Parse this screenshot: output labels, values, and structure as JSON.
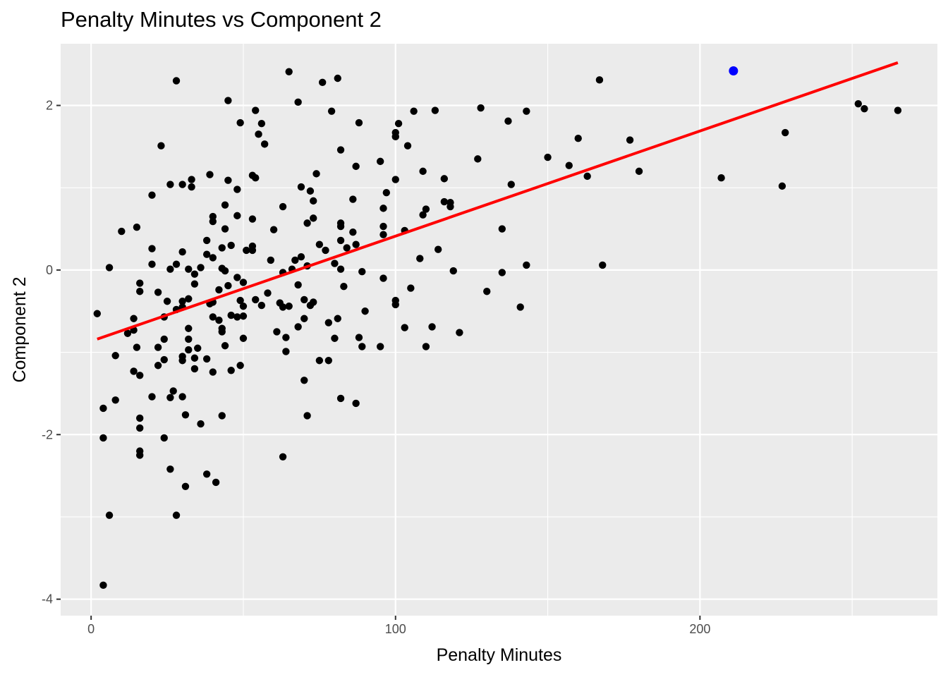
{
  "chart_data": {
    "type": "scatter",
    "title": "Penalty Minutes vs Component 2",
    "xlabel": "Penalty Minutes",
    "ylabel": "Component 2",
    "xlim": [
      -10,
      278
    ],
    "ylim": [
      -4.2,
      2.75
    ],
    "xticks": [
      0,
      100,
      200
    ],
    "yticks": [
      -4,
      -2,
      0,
      2
    ],
    "grid": true,
    "panel_color": "#ebebeb",
    "point_color": "#000000",
    "highlight_color": "#0000ff",
    "trend_color": "#ff0000",
    "trend_line": {
      "x": [
        2,
        265
      ],
      "y": [
        -0.84,
        2.52
      ]
    },
    "highlight": {
      "x": 211,
      "y": 2.42
    },
    "points": [
      [
        2,
        -0.53
      ],
      [
        4,
        -3.83
      ],
      [
        4,
        -2.04
      ],
      [
        4,
        -1.68
      ],
      [
        6,
        -2.98
      ],
      [
        6,
        0.03
      ],
      [
        8,
        -1.58
      ],
      [
        8,
        -1.04
      ],
      [
        10,
        0.47
      ],
      [
        12,
        -0.77
      ],
      [
        14,
        -0.59
      ],
      [
        14,
        -1.23
      ],
      [
        14,
        -0.73
      ],
      [
        15,
        -0.94
      ],
      [
        15,
        0.52
      ],
      [
        16,
        -0.16
      ],
      [
        16,
        -0.26
      ],
      [
        16,
        -1.28
      ],
      [
        16,
        -1.8
      ],
      [
        16,
        -1.92
      ],
      [
        16,
        -2.2
      ],
      [
        16,
        -2.25
      ],
      [
        20,
        0.91
      ],
      [
        20,
        0.26
      ],
      [
        20,
        0.07
      ],
      [
        20,
        -1.54
      ],
      [
        22,
        -1.16
      ],
      [
        22,
        -0.94
      ],
      [
        22,
        -0.27
      ],
      [
        23,
        1.51
      ],
      [
        24,
        -0.57
      ],
      [
        24,
        -0.84
      ],
      [
        24,
        -1.09
      ],
      [
        24,
        -2.04
      ],
      [
        25,
        -0.38
      ],
      [
        26,
        -2.42
      ],
      [
        26,
        -1.55
      ],
      [
        26,
        1.04
      ],
      [
        26,
        0.01
      ],
      [
        27,
        -1.47
      ],
      [
        28,
        0.07
      ],
      [
        28,
        -0.48
      ],
      [
        28,
        -2.98
      ],
      [
        28,
        2.3
      ],
      [
        30,
        -1.05
      ],
      [
        30,
        -1.1
      ],
      [
        30,
        -1.54
      ],
      [
        30,
        -0.38
      ],
      [
        30,
        -0.45
      ],
      [
        30,
        1.04
      ],
      [
        30,
        0.22
      ],
      [
        31,
        -1.76
      ],
      [
        31,
        -2.63
      ],
      [
        32,
        -0.84
      ],
      [
        32,
        -0.35
      ],
      [
        32,
        -0.71
      ],
      [
        32,
        -0.97
      ],
      [
        32,
        0.01
      ],
      [
        33,
        1.1
      ],
      [
        33,
        1.01
      ],
      [
        34,
        -0.05
      ],
      [
        34,
        -0.17
      ],
      [
        34,
        -1.07
      ],
      [
        34,
        -1.2
      ],
      [
        35,
        -0.95
      ],
      [
        36,
        -1.87
      ],
      [
        36,
        0.03
      ],
      [
        38,
        -1.08
      ],
      [
        38,
        -2.48
      ],
      [
        38,
        0.19
      ],
      [
        38,
        0.36
      ],
      [
        39,
        1.16
      ],
      [
        39,
        -0.41
      ],
      [
        40,
        0.65
      ],
      [
        40,
        0.59
      ],
      [
        40,
        0.15
      ],
      [
        40,
        -0.39
      ],
      [
        40,
        -0.57
      ],
      [
        40,
        -1.24
      ],
      [
        41,
        -2.58
      ],
      [
        42,
        -0.61
      ],
      [
        42,
        -0.24
      ],
      [
        43,
        -0.71
      ],
      [
        43,
        -0.75
      ],
      [
        43,
        -1.77
      ],
      [
        43,
        0.02
      ],
      [
        43,
        0.27
      ],
      [
        44,
        0.79
      ],
      [
        44,
        0.5
      ],
      [
        44,
        -0.01
      ],
      [
        44,
        -0.92
      ],
      [
        45,
        -0.19
      ],
      [
        45,
        1.09
      ],
      [
        45,
        2.06
      ],
      [
        46,
        -0.55
      ],
      [
        46,
        -1.22
      ],
      [
        46,
        0.3
      ],
      [
        48,
        0.98
      ],
      [
        48,
        0.66
      ],
      [
        48,
        -0.09
      ],
      [
        48,
        -0.57
      ],
      [
        49,
        1.79
      ],
      [
        49,
        -0.37
      ],
      [
        49,
        -1.16
      ],
      [
        50,
        -0.44
      ],
      [
        50,
        -0.56
      ],
      [
        50,
        -0.83
      ],
      [
        50,
        -0.15
      ],
      [
        51,
        0.24
      ],
      [
        53,
        0.29
      ],
      [
        53,
        0.62
      ],
      [
        53,
        1.15
      ],
      [
        53,
        0.24
      ],
      [
        54,
        1.94
      ],
      [
        54,
        1.12
      ],
      [
        54,
        -0.36
      ],
      [
        55,
        1.65
      ],
      [
        56,
        1.78
      ],
      [
        56,
        -0.43
      ],
      [
        57,
        1.53
      ],
      [
        58,
        -0.28
      ],
      [
        59,
        0.12
      ],
      [
        60,
        0.49
      ],
      [
        61,
        -0.75
      ],
      [
        62,
        -0.4
      ],
      [
        63,
        0.77
      ],
      [
        63,
        -0.03
      ],
      [
        63,
        -0.45
      ],
      [
        63,
        -2.27
      ],
      [
        64,
        -0.82
      ],
      [
        64,
        -0.99
      ],
      [
        65,
        2.41
      ],
      [
        65,
        -0.44
      ],
      [
        66,
        0.01
      ],
      [
        67,
        0.12
      ],
      [
        68,
        2.04
      ],
      [
        68,
        -0.18
      ],
      [
        68,
        -0.69
      ],
      [
        69,
        0.16
      ],
      [
        69,
        1.01
      ],
      [
        70,
        -0.59
      ],
      [
        70,
        -0.36
      ],
      [
        70,
        -1.34
      ],
      [
        71,
        -1.77
      ],
      [
        71,
        0.05
      ],
      [
        71,
        0.57
      ],
      [
        72,
        0.96
      ],
      [
        72,
        -0.43
      ],
      [
        73,
        0.84
      ],
      [
        73,
        0.63
      ],
      [
        73,
        -0.39
      ],
      [
        74,
        1.17
      ],
      [
        75,
        0.31
      ],
      [
        75,
        -1.1
      ],
      [
        76,
        2.28
      ],
      [
        77,
        0.24
      ],
      [
        78,
        -0.64
      ],
      [
        78,
        -1.1
      ],
      [
        79,
        1.93
      ],
      [
        80,
        0.08
      ],
      [
        80,
        -0.83
      ],
      [
        81,
        2.33
      ],
      [
        81,
        -0.59
      ],
      [
        82,
        0.57
      ],
      [
        82,
        0.53
      ],
      [
        82,
        0.36
      ],
      [
        82,
        0.01
      ],
      [
        82,
        1.46
      ],
      [
        82,
        -1.56
      ],
      [
        83,
        -0.2
      ],
      [
        84,
        0.27
      ],
      [
        86,
        0.86
      ],
      [
        86,
        0.46
      ],
      [
        87,
        0.31
      ],
      [
        87,
        1.26
      ],
      [
        87,
        -1.62
      ],
      [
        88,
        -0.82
      ],
      [
        88,
        1.79
      ],
      [
        89,
        -0.02
      ],
      [
        89,
        -0.93
      ],
      [
        90,
        -0.5
      ],
      [
        95,
        1.32
      ],
      [
        95,
        -0.93
      ],
      [
        96,
        0.53
      ],
      [
        96,
        0.75
      ],
      [
        96,
        0.43
      ],
      [
        96,
        -0.1
      ],
      [
        97,
        0.94
      ],
      [
        100,
        1.62
      ],
      [
        100,
        1.67
      ],
      [
        100,
        1.1
      ],
      [
        100,
        -0.37
      ],
      [
        100,
        -0.42
      ],
      [
        101,
        1.78
      ],
      [
        103,
        0.48
      ],
      [
        103,
        -0.7
      ],
      [
        104,
        1.51
      ],
      [
        105,
        -0.22
      ],
      [
        106,
        1.93
      ],
      [
        108,
        0.14
      ],
      [
        109,
        1.2
      ],
      [
        109,
        0.67
      ],
      [
        110,
        0.74
      ],
      [
        110,
        -0.93
      ],
      [
        112,
        -0.69
      ],
      [
        113,
        1.94
      ],
      [
        114,
        0.25
      ],
      [
        116,
        1.11
      ],
      [
        116,
        0.83
      ],
      [
        118,
        0.82
      ],
      [
        118,
        0.77
      ],
      [
        119,
        -0.01
      ],
      [
        121,
        -0.76
      ],
      [
        127,
        1.35
      ],
      [
        128,
        1.97
      ],
      [
        130,
        -0.26
      ],
      [
        135,
        0.5
      ],
      [
        135,
        -0.03
      ],
      [
        137,
        1.81
      ],
      [
        138,
        1.04
      ],
      [
        141,
        -0.45
      ],
      [
        143,
        1.93
      ],
      [
        143,
        0.06
      ],
      [
        150,
        1.37
      ],
      [
        157,
        1.27
      ],
      [
        160,
        1.6
      ],
      [
        163,
        1.14
      ],
      [
        167,
        2.31
      ],
      [
        168,
        0.06
      ],
      [
        177,
        1.58
      ],
      [
        180,
        1.2
      ],
      [
        207,
        1.12
      ],
      [
        227,
        1.02
      ],
      [
        228,
        1.67
      ],
      [
        252,
        2.02
      ],
      [
        254,
        1.96
      ],
      [
        265,
        1.94
      ]
    ]
  }
}
